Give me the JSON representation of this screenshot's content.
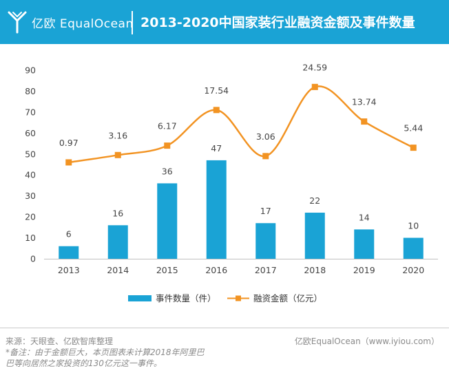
{
  "header": {
    "logo_text": "亿欧 EqualOcean",
    "title": "2013-2020中国家装行业融资金额及事件数量",
    "background_color": "#1aa3d5"
  },
  "chart_data": {
    "type": "bar+line",
    "title": "2013-2020中国家装行业融资金额及事件数量",
    "categories": [
      "2013",
      "2014",
      "2015",
      "2016",
      "2017",
      "2018",
      "2019",
      "2020"
    ],
    "ylim": [
      0,
      90
    ],
    "yticks": [
      0,
      10,
      20,
      30,
      40,
      50,
      60,
      70,
      80,
      90
    ],
    "series": [
      {
        "name": "事件数量（件）",
        "type": "bar",
        "color": "#1aa3d5",
        "values": [
          6,
          16,
          36,
          47,
          17,
          22,
          14,
          10
        ],
        "labels": [
          "6",
          "16",
          "36",
          "47",
          "17",
          "22",
          "14",
          "10"
        ]
      },
      {
        "name": "融资金额（亿元）",
        "type": "line",
        "smooth": true,
        "color": "#f29322",
        "values": [
          0.97,
          3.16,
          6.17,
          17.54,
          3.06,
          24.59,
          13.74,
          5.44
        ],
        "plotted_positions": [
          46,
          49.5,
          54,
          71,
          49,
          82,
          65.5,
          53
        ],
        "labels": [
          "0.97",
          "3.16",
          "6.17",
          "17.54",
          "3.06",
          "24.59",
          "13.74",
          "5.44"
        ]
      }
    ],
    "legend_position": "bottom-center"
  },
  "footer": {
    "source": "来源：天眼查、亿欧智库整理",
    "brand": "亿欧EqualOcean（www.iyiou.com）",
    "note": "*备注：由于金额巨大，本页图表未计算2018年阿里巴巴等向居然之家投资的130亿元这一事件。"
  }
}
